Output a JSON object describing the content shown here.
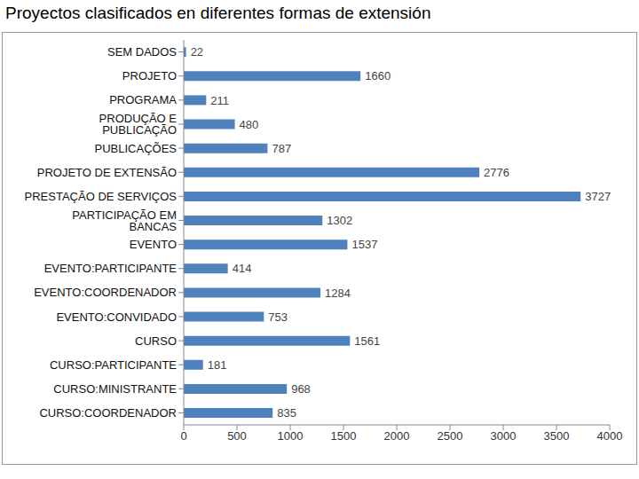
{
  "chart_data": {
    "type": "bar",
    "title": "Proyectos clasificados en diferentes formas de extensión",
    "orientation": "horizontal",
    "categories": [
      "SEM DADOS",
      "PROJETO",
      "PROGRAMA",
      "PRODUÇÃO E PUBLICAÇÃO",
      "PUBLICAÇÕES",
      "PROJETO DE EXTENSÃO",
      "PRESTAÇÃO DE SERVIÇOS",
      "PARTICIPAÇÃO EM BANCAS",
      "EVENTO",
      "EVENTO:PARTICIPANTE",
      "EVENTO:COORDENADOR",
      "EVENTO:CONVIDADO",
      "CURSO",
      "CURSO:PARTICIPANTE",
      "CURSO:MINISTRANTE",
      "CURSO:COORDENADOR"
    ],
    "values": [
      22,
      1660,
      211,
      480,
      787,
      2776,
      3727,
      1302,
      1537,
      414,
      1284,
      753,
      1561,
      181,
      968,
      835
    ],
    "color": "#4f81bd",
    "xlim": [
      0,
      4000
    ],
    "xticks": [
      0,
      500,
      1000,
      1500,
      2000,
      2500,
      3000,
      3500,
      4000
    ],
    "grid": false,
    "data_labels": true
  }
}
